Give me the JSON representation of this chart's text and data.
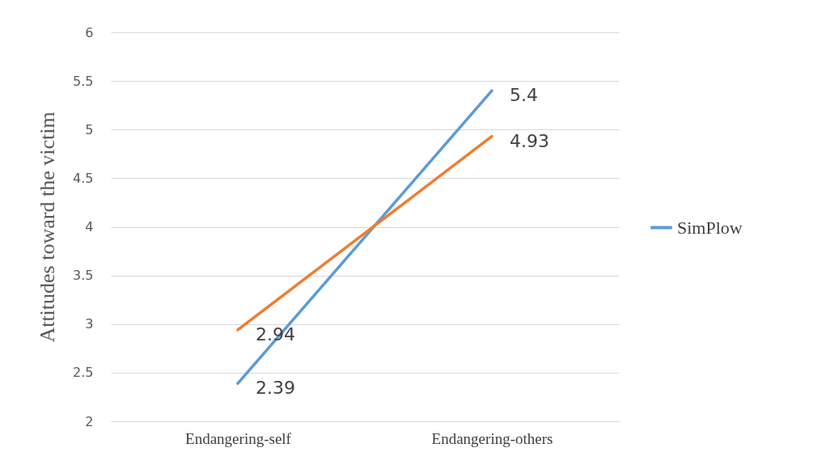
{
  "chart_data": {
    "type": "line",
    "ylabel": "Attitudes toward the victim",
    "categories": [
      "Endangering-self",
      "Endangering-others"
    ],
    "series": [
      {
        "name": "SimPlow",
        "color": "#5b9bd5",
        "values": [
          2.39,
          5.4
        ]
      },
      {
        "color": "#ed7d31",
        "values": [
          2.94,
          4.93
        ]
      }
    ],
    "ylim": [
      2,
      6
    ],
    "yticks": [
      2,
      2.5,
      3,
      3.5,
      4,
      4.5,
      5,
      5.5,
      6
    ],
    "grid": "y",
    "legend": "right",
    "data_labels": true
  }
}
